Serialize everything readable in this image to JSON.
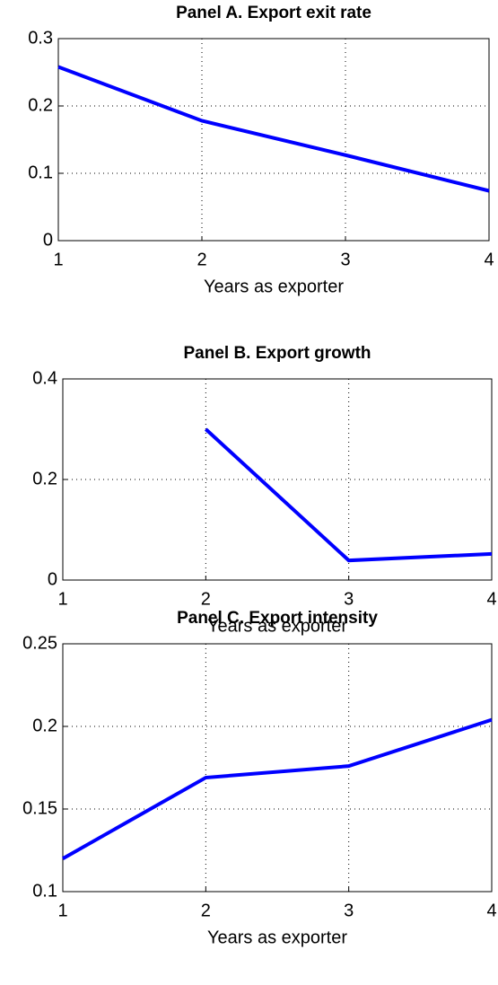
{
  "chart_data": [
    {
      "type": "line",
      "title": "Panel A. Export exit rate",
      "xlabel": "Years as exporter",
      "x": [
        1,
        2,
        3,
        4
      ],
      "values": [
        0.258,
        0.178,
        0.127,
        0.074
      ],
      "color": "#0000ff",
      "xlim": [
        1,
        4
      ],
      "ylim": [
        0,
        0.3
      ],
      "xticks": [
        1,
        2,
        3,
        4
      ],
      "yticks": [
        0,
        0.1,
        0.2,
        0.3
      ],
      "grid": true
    },
    {
      "type": "line",
      "title": "Panel B. Export growth",
      "xlabel": "Years as exporter",
      "x": [
        1,
        2,
        3,
        4
      ],
      "values": [
        null,
        0.3,
        0.039,
        0.052
      ],
      "color": "#0000ff",
      "xlim": [
        1,
        4
      ],
      "ylim": [
        0,
        0.4
      ],
      "xticks": [
        1,
        2,
        3,
        4
      ],
      "yticks": [
        0,
        0.2,
        0.4
      ],
      "grid": true
    },
    {
      "type": "line",
      "title": "Panel C. Export intensity",
      "xlabel": "Years as exporter",
      "x": [
        1,
        2,
        3,
        4
      ],
      "values": [
        0.12,
        0.169,
        0.176,
        0.204
      ],
      "color": "#0000ff",
      "xlim": [
        1,
        4
      ],
      "ylim": [
        0.1,
        0.25
      ],
      "xticks": [
        1,
        2,
        3,
        4
      ],
      "yticks": [
        0.1,
        0.15,
        0.2,
        0.25
      ],
      "grid": true
    }
  ]
}
